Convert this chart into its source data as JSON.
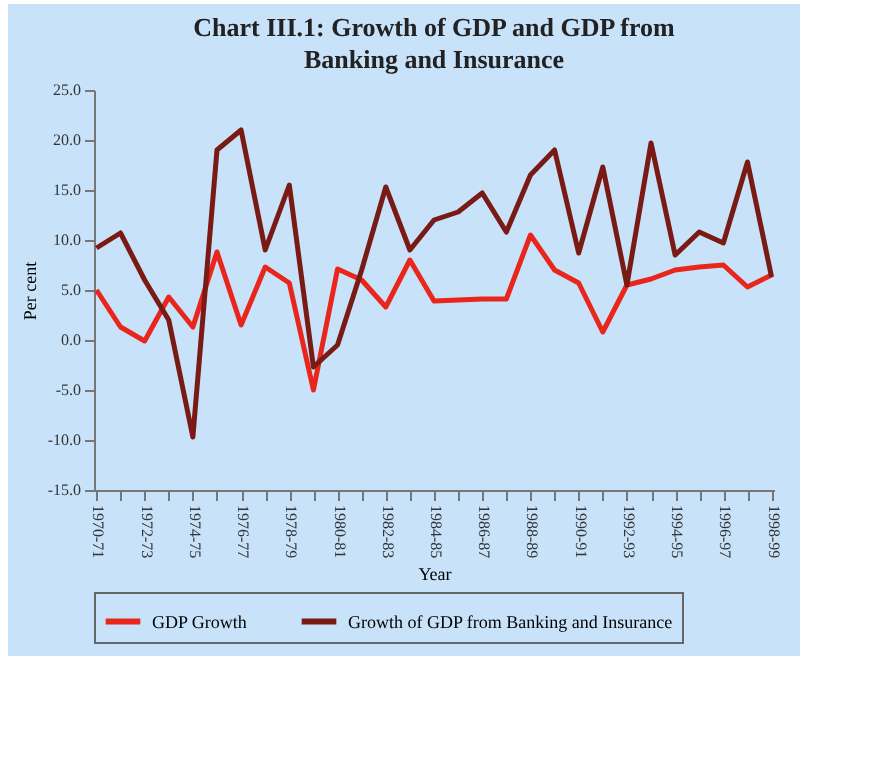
{
  "chart_data": {
    "type": "line",
    "title": "Chart III.1: Growth of GDP and GDP from Banking and Insurance",
    "xlabel": "Year",
    "ylabel": "Per cent",
    "categories": [
      "1970-71",
      null,
      "1972-73",
      null,
      "1974-75",
      null,
      "1976-77",
      null,
      "1978-79",
      null,
      "1980-81",
      null,
      "1982-83",
      null,
      "1984-85",
      null,
      "1986-87",
      null,
      "1988-89",
      null,
      "1990-91",
      null,
      "1992-93",
      null,
      "1994-95",
      null,
      "1996-97",
      null,
      "1998-99"
    ],
    "series": [
      {
        "name": "GDP Growth",
        "color": "#e8261c",
        "values": [
          5.0,
          1.3,
          -0.1,
          4.3,
          1.3,
          8.8,
          1.5,
          7.3,
          5.7,
          -5.0,
          7.1,
          6.0,
          3.3,
          8.0,
          3.9,
          4.0,
          4.1,
          4.1,
          10.5,
          7.0,
          5.7,
          0.8,
          5.5,
          6.1,
          7.0,
          7.3,
          7.5,
          5.3,
          6.5
        ]
      },
      {
        "name": "Growth of GDP from Banking and Insurance",
        "color": "#7a1a14",
        "values": [
          9.2,
          10.7,
          6.0,
          2.0,
          -9.7,
          19.0,
          21.0,
          9.0,
          15.5,
          -2.7,
          -0.5,
          7.0,
          15.3,
          9.0,
          12.0,
          12.8,
          14.7,
          10.8,
          16.5,
          19.0,
          8.7,
          17.3,
          5.5,
          19.7,
          8.5,
          10.8,
          9.7,
          17.8,
          6.3
        ]
      }
    ],
    "ylim": [
      -15,
      25
    ],
    "yticks": [
      {
        "value": -15,
        "label": "-15.0"
      },
      {
        "value": -10,
        "label": "-10.0"
      },
      {
        "value": -5,
        "label": "-5.0"
      },
      {
        "value": 0,
        "label": "0.0"
      },
      {
        "value": 5,
        "label": "5.0"
      },
      {
        "value": 10,
        "label": "10.0"
      },
      {
        "value": 15,
        "label": "15.0"
      },
      {
        "value": 20,
        "label": "20.0"
      },
      {
        "value": 25,
        "label": "25.0"
      }
    ],
    "grid": false,
    "legend": "bottom",
    "marker": "none",
    "line_style": "solid"
  }
}
